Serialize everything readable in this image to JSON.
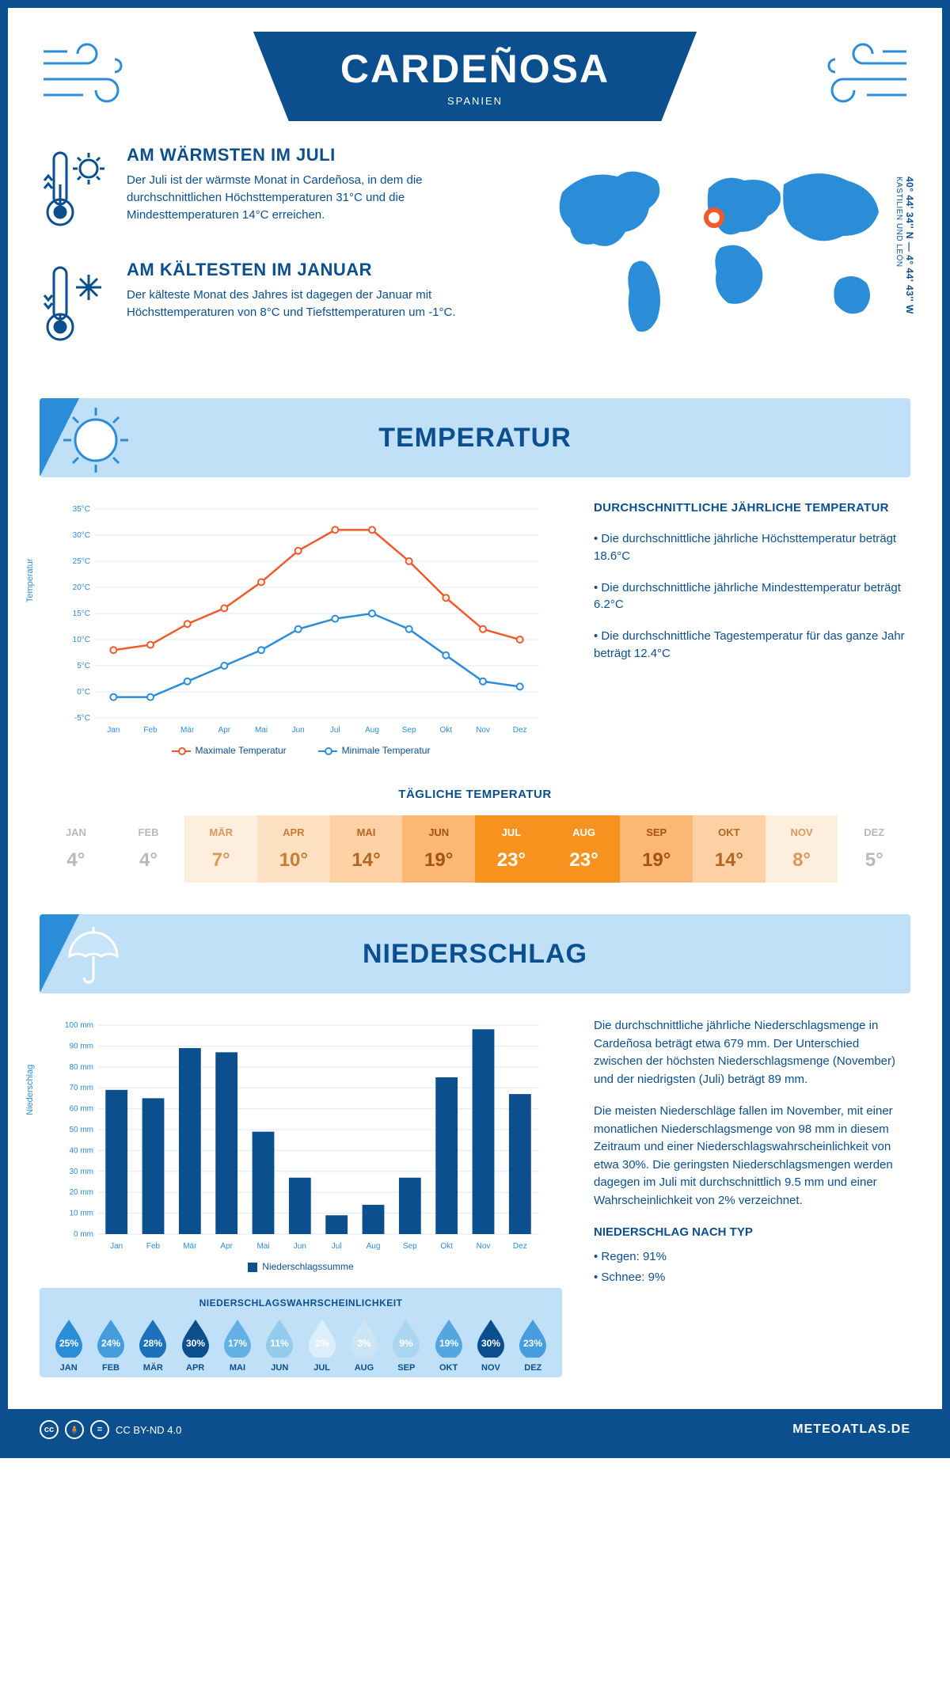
{
  "colors": {
    "primary": "#0b4f8f",
    "accent": "#2b8dd8",
    "banner_bg": "#bfe0f7",
    "max_line": "#f05a28",
    "min_line": "#2b8dd8",
    "bar": "#0b4f8f"
  },
  "header": {
    "title": "CARDEÑOSA",
    "country": "SPANIEN"
  },
  "location": {
    "coords": "40° 44' 34'' N — 4° 44' 43'' W",
    "region": "KASTILIEN UND LEÓN"
  },
  "warmest": {
    "title": "AM WÄRMSTEN IM JULI",
    "text": "Der Juli ist der wärmste Monat in Cardeñosa, in dem die durchschnittlichen Höchsttemperaturen 31°C und die Mindesttemperaturen 14°C erreichen."
  },
  "coldest": {
    "title": "AM KÄLTESTEN IM JANUAR",
    "text": "Der kälteste Monat des Jahres ist dagegen der Januar mit Höchsttemperaturen von 8°C und Tiefsttemperaturen um -1°C."
  },
  "sections": {
    "temperature": "TEMPERATUR",
    "precipitation": "NIEDERSCHLAG"
  },
  "temp_chart": {
    "ylabel": "Temperatur",
    "ymin": -5,
    "ymax": 35,
    "ystep": 5,
    "months": [
      "Jan",
      "Feb",
      "Mär",
      "Apr",
      "Mai",
      "Jun",
      "Jul",
      "Aug",
      "Sep",
      "Okt",
      "Nov",
      "Dez"
    ],
    "max_series": [
      8,
      9,
      13,
      16,
      21,
      27,
      31,
      31,
      25,
      18,
      12,
      10
    ],
    "min_series": [
      -1,
      -1,
      2,
      5,
      8,
      12,
      14,
      15,
      12,
      7,
      2,
      1
    ],
    "legend_max": "Maximale Temperatur",
    "legend_min": "Minimale Temperatur"
  },
  "temp_facts": {
    "title": "DURCHSCHNITTLICHE JÄHRLICHE TEMPERATUR",
    "p1": "• Die durchschnittliche jährliche Höchsttemperatur beträgt 18.6°C",
    "p2": "• Die durchschnittliche jährliche Mindesttemperatur beträgt 6.2°C",
    "p3": "• Die durchschnittliche Tagestemperatur für das ganze Jahr beträgt 12.4°C"
  },
  "daily_temp": {
    "title": "TÄGLICHE TEMPERATUR",
    "months": [
      "JAN",
      "FEB",
      "MÄR",
      "APR",
      "MAI",
      "JUN",
      "JUL",
      "AUG",
      "SEP",
      "OKT",
      "NOV",
      "DEZ"
    ],
    "values": [
      "4°",
      "4°",
      "7°",
      "10°",
      "14°",
      "19°",
      "23°",
      "23°",
      "19°",
      "14°",
      "8°",
      "5°"
    ],
    "bg": [
      "#ffffff",
      "#ffffff",
      "#fdeedd",
      "#fde0c2",
      "#fdd1a4",
      "#fbb773",
      "#f7921e",
      "#f7921e",
      "#fbb773",
      "#fdd1a4",
      "#fdeedd",
      "#ffffff"
    ],
    "fg": [
      "#b9b9b9",
      "#b9b9b9",
      "#d69a5b",
      "#c67d34",
      "#b36524",
      "#a45217",
      "#ffffff",
      "#ffffff",
      "#a45217",
      "#b36524",
      "#d69a5b",
      "#b9b9b9"
    ]
  },
  "precip_chart": {
    "ylabel": "Niederschlag",
    "ymax": 100,
    "ystep": 10,
    "months": [
      "Jan",
      "Feb",
      "Mär",
      "Apr",
      "Mai",
      "Jun",
      "Jul",
      "Aug",
      "Sep",
      "Okt",
      "Nov",
      "Dez"
    ],
    "values": [
      69,
      65,
      89,
      87,
      49,
      27,
      9,
      14,
      27,
      75,
      98,
      67
    ],
    "legend": "Niederschlagssumme"
  },
  "precip_text": {
    "p1": "Die durchschnittliche jährliche Niederschlagsmenge in Cardeñosa beträgt etwa 679 mm. Der Unterschied zwischen der höchsten Niederschlagsmenge (November) und der niedrigsten (Juli) beträgt 89 mm.",
    "p2": "Die meisten Niederschläge fallen im November, mit einer monatlichen Niederschlagsmenge von 98 mm in diesem Zeitraum und einer Niederschlagswahrscheinlichkeit von etwa 30%. Die geringsten Niederschlagsmengen werden dagegen im Juli mit durchschnittlich 9.5 mm und einer Wahrscheinlichkeit von 2% verzeichnet.",
    "type_title": "NIEDERSCHLAG NACH TYP",
    "type1": "• Regen: 91%",
    "type2": "• Schnee: 9%"
  },
  "precip_prob": {
    "title": "NIEDERSCHLAGSWAHRSCHEINLICHKEIT",
    "months": [
      "JAN",
      "FEB",
      "MÄR",
      "APR",
      "MAI",
      "JUN",
      "JUL",
      "AUG",
      "SEP",
      "OKT",
      "NOV",
      "DEZ"
    ],
    "values": [
      "25%",
      "24%",
      "28%",
      "30%",
      "17%",
      "11%",
      "2%",
      "3%",
      "9%",
      "19%",
      "30%",
      "23%"
    ],
    "shades": [
      "#2b8dd8",
      "#459ddd",
      "#1b72bb",
      "#0b4f8f",
      "#62b0e4",
      "#93cbec",
      "#dceef9",
      "#cce5f5",
      "#aad6f0",
      "#54a6e0",
      "#0b4f8f",
      "#459ddd"
    ],
    "text_colors": [
      "#fff",
      "#fff",
      "#fff",
      "#fff",
      "#fff",
      "#fff",
      "#0b4f8f",
      "#0b4f8f",
      "#fff",
      "#fff",
      "#fff",
      "#fff"
    ]
  },
  "footer": {
    "license": "CC BY-ND 4.0",
    "site": "METEOATLAS.DE"
  }
}
